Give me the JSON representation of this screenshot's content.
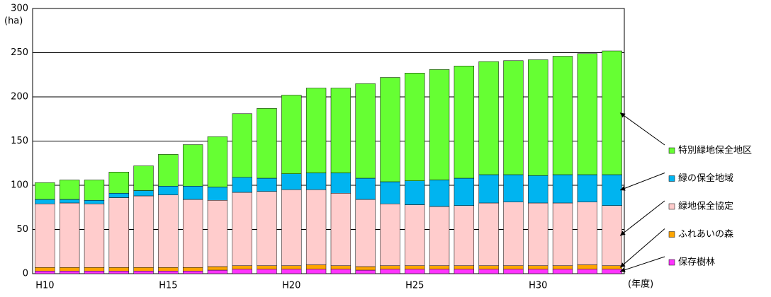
{
  "chart_data": {
    "type": "stacked_bar",
    "y_label": "(ha)",
    "x_label": "(年度)",
    "categories": [
      "H10",
      null,
      null,
      null,
      null,
      "H15",
      null,
      null,
      null,
      null,
      "H20",
      null,
      null,
      null,
      null,
      "H25",
      null,
      null,
      null,
      null,
      "H30",
      null,
      null,
      null
    ],
    "series": [
      {
        "name": "保存樹林",
        "color": "#ff33ff",
        "values": [
          3,
          3,
          3,
          3,
          3,
          3,
          3,
          4,
          5,
          5,
          5,
          5,
          5,
          4,
          5,
          5,
          5,
          5,
          5,
          5,
          5,
          5,
          5,
          5
        ]
      },
      {
        "name": "ふれあいの森",
        "color": "#ffa500",
        "values": [
          4,
          4,
          4,
          4,
          4,
          4,
          4,
          4,
          4,
          4,
          4,
          5,
          4,
          4,
          4,
          4,
          4,
          4,
          4,
          4,
          4,
          4,
          5,
          4
        ]
      },
      {
        "name": "緑地保全協定",
        "color": "#ffcccc",
        "values": [
          72,
          73,
          72,
          79,
          81,
          82,
          77,
          75,
          83,
          84,
          86,
          85,
          82,
          76,
          70,
          69,
          67,
          68,
          71,
          72,
          71,
          71,
          71,
          68
        ]
      },
      {
        "name": "緑の保全地域",
        "color": "#00b4f0",
        "values": [
          5,
          4,
          4,
          5,
          6,
          10,
          15,
          15,
          17,
          15,
          18,
          19,
          23,
          24,
          25,
          27,
          30,
          31,
          32,
          31,
          31,
          32,
          31,
          35
        ]
      },
      {
        "name": "特別緑地保全地区",
        "color": "#66ff33",
        "values": [
          19,
          22,
          23,
          24,
          28,
          36,
          47,
          57,
          72,
          79,
          89,
          96,
          96,
          107,
          118,
          122,
          125,
          127,
          128,
          129,
          131,
          134,
          137,
          140
        ]
      }
    ],
    "ylim": [
      0,
      300
    ],
    "yticks": [
      0,
      50,
      100,
      150,
      200,
      250,
      300
    ],
    "grid": true
  }
}
